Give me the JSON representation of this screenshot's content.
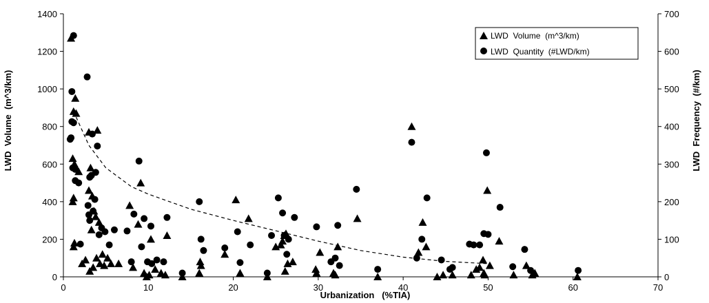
{
  "chart_data": {
    "type": "scatter",
    "title": "",
    "xlabel": "Urbanization   (%TIA)",
    "ylabel_left": "LWD  Volume  (m^3/km)",
    "ylabel_right": "LWD  Frequency  (#/km)",
    "xlim": [
      0,
      70
    ],
    "ylim_left": [
      0,
      1400
    ],
    "ylim_right": [
      0,
      700
    ],
    "x_ticks": [
      0,
      10,
      20,
      30,
      40,
      50,
      60,
      70
    ],
    "y_left_ticks": [
      0,
      200,
      400,
      600,
      800,
      1000,
      1200,
      1400
    ],
    "y_right_ticks": [
      0,
      100,
      200,
      300,
      400,
      500,
      600,
      700
    ],
    "grid": false,
    "legend_position": "top-right",
    "series": [
      {
        "name": "LWD  Volume  (m^3/km)",
        "marker": "triangle",
        "axis": "left",
        "points": [
          [
            0.9,
            1270
          ],
          [
            1.2,
            880
          ],
          [
            1.4,
            950
          ],
          [
            1.5,
            870
          ],
          [
            1.1,
            630
          ],
          [
            1.3,
            600
          ],
          [
            1.2,
            420
          ],
          [
            1.1,
            400
          ],
          [
            1.3,
            180
          ],
          [
            1.2,
            160
          ],
          [
            1.8,
            560
          ],
          [
            2.2,
            70
          ],
          [
            2.6,
            90
          ],
          [
            3.0,
            770
          ],
          [
            3.2,
            580
          ],
          [
            3.0,
            460
          ],
          [
            3.4,
            430
          ],
          [
            3.3,
            250
          ],
          [
            3.1,
            30
          ],
          [
            3.5,
            50
          ],
          [
            3.6,
            350
          ],
          [
            3.8,
            320
          ],
          [
            4.0,
            780
          ],
          [
            4.2,
            290
          ],
          [
            3.9,
            100
          ],
          [
            4.3,
            70
          ],
          [
            4.6,
            120
          ],
          [
            4.8,
            60
          ],
          [
            5.2,
            100
          ],
          [
            5.6,
            70
          ],
          [
            6.5,
            70
          ],
          [
            7.8,
            380
          ],
          [
            8.2,
            50
          ],
          [
            8.8,
            280
          ],
          [
            9.1,
            500
          ],
          [
            9.5,
            20
          ],
          [
            9.8,
            0
          ],
          [
            10.1,
            10
          ],
          [
            10.3,
            200
          ],
          [
            10.8,
            40
          ],
          [
            11.5,
            20
          ],
          [
            12.0,
            10
          ],
          [
            12.2,
            220
          ],
          [
            14.0,
            0
          ],
          [
            16.0,
            20
          ],
          [
            16.1,
            80
          ],
          [
            16.2,
            60
          ],
          [
            19.0,
            120
          ],
          [
            20.3,
            410
          ],
          [
            20.8,
            20
          ],
          [
            21.8,
            310
          ],
          [
            24.0,
            0
          ],
          [
            25.0,
            160
          ],
          [
            25.6,
            170
          ],
          [
            25.8,
            190
          ],
          [
            26.0,
            220
          ],
          [
            26.2,
            230
          ],
          [
            26.1,
            30
          ],
          [
            26.4,
            70
          ],
          [
            27.0,
            80
          ],
          [
            29.7,
            40
          ],
          [
            29.8,
            20
          ],
          [
            30.2,
            130
          ],
          [
            31.8,
            20
          ],
          [
            32.0,
            10
          ],
          [
            32.3,
            160
          ],
          [
            34.6,
            310
          ],
          [
            37.0,
            0
          ],
          [
            41.0,
            800
          ],
          [
            41.8,
            130
          ],
          [
            42.3,
            290
          ],
          [
            42.7,
            160
          ],
          [
            44.0,
            0
          ],
          [
            44.7,
            10
          ],
          [
            45.8,
            10
          ],
          [
            48.0,
            10
          ],
          [
            48.6,
            40
          ],
          [
            49.0,
            50
          ],
          [
            49.4,
            90
          ],
          [
            49.5,
            20
          ],
          [
            49.6,
            10
          ],
          [
            49.9,
            460
          ],
          [
            50.2,
            60
          ],
          [
            51.3,
            190
          ],
          [
            53.0,
            10
          ],
          [
            54.5,
            60
          ],
          [
            55.2,
            10
          ],
          [
            55.5,
            20
          ],
          [
            60.5,
            0
          ]
        ]
      },
      {
        "name": "LWD  Quantity  (#LWD/km)",
        "marker": "circle",
        "axis": "right",
        "points": [
          [
            1.2,
            642
          ],
          [
            1.0,
            493
          ],
          [
            2.8,
            532
          ],
          [
            1.0,
            413
          ],
          [
            1.2,
            410
          ],
          [
            0.9,
            370
          ],
          [
            0.8,
            366
          ],
          [
            1.1,
            290
          ],
          [
            1.4,
            286
          ],
          [
            1.4,
            256
          ],
          [
            1.8,
            250
          ],
          [
            2.0,
            87
          ],
          [
            2.9,
            190
          ],
          [
            3.0,
            165
          ],
          [
            3.1,
            150
          ],
          [
            3.1,
            265
          ],
          [
            3.3,
            270
          ],
          [
            3.5,
            175
          ],
          [
            3.7,
            206
          ],
          [
            3.8,
            278
          ],
          [
            3.4,
            380
          ],
          [
            4.0,
            348
          ],
          [
            4.2,
            112
          ],
          [
            4.5,
            130
          ],
          [
            4.9,
            120
          ],
          [
            5.4,
            85
          ],
          [
            6.0,
            125
          ],
          [
            7.5,
            122
          ],
          [
            8.0,
            40
          ],
          [
            8.3,
            167
          ],
          [
            8.9,
            308
          ],
          [
            9.2,
            80
          ],
          [
            9.5,
            155
          ],
          [
            9.9,
            40
          ],
          [
            10.3,
            135
          ],
          [
            10.4,
            35
          ],
          [
            11.0,
            45
          ],
          [
            11.8,
            40
          ],
          [
            12.2,
            158
          ],
          [
            14.0,
            10
          ],
          [
            16.0,
            200
          ],
          [
            16.2,
            100
          ],
          [
            16.5,
            70
          ],
          [
            19.0,
            77
          ],
          [
            20.5,
            120
          ],
          [
            20.8,
            38
          ],
          [
            22.0,
            85
          ],
          [
            24.0,
            10
          ],
          [
            24.5,
            110
          ],
          [
            25.3,
            210
          ],
          [
            25.8,
            170
          ],
          [
            26.0,
            110
          ],
          [
            26.3,
            60
          ],
          [
            26.5,
            100
          ],
          [
            27.2,
            158
          ],
          [
            29.8,
            133
          ],
          [
            31.5,
            40
          ],
          [
            32.0,
            50
          ],
          [
            32.5,
            30
          ],
          [
            32.3,
            137
          ],
          [
            34.5,
            233
          ],
          [
            37.0,
            20
          ],
          [
            41.0,
            358
          ],
          [
            41.6,
            50
          ],
          [
            42.2,
            100
          ],
          [
            42.8,
            210
          ],
          [
            44.5,
            45
          ],
          [
            45.5,
            20
          ],
          [
            45.8,
            25
          ],
          [
            47.8,
            87
          ],
          [
            48.3,
            85
          ],
          [
            49.0,
            85
          ],
          [
            49.5,
            115
          ],
          [
            49.8,
            330
          ],
          [
            50.0,
            113
          ],
          [
            51.4,
            185
          ],
          [
            52.9,
            27
          ],
          [
            54.3,
            73
          ],
          [
            55.0,
            17
          ],
          [
            60.6,
            17
          ]
        ]
      }
    ],
    "trendline": {
      "style": "dashed",
      "x": [
        1.5,
        3,
        5,
        8,
        10,
        15,
        20,
        25,
        30,
        35,
        40,
        45,
        50
      ],
      "y": [
        850,
        700,
        580,
        480,
        440,
        360,
        300,
        245,
        190,
        140,
        105,
        82,
        70
      ]
    }
  }
}
